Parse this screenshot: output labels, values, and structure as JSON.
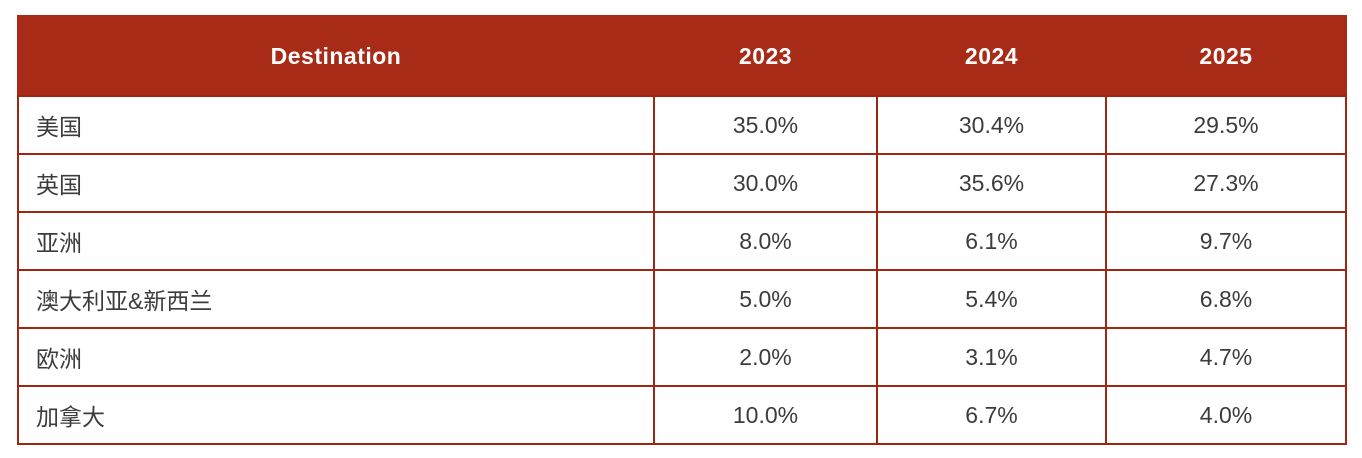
{
  "chart_data": {
    "type": "table",
    "columns": [
      "Destination",
      "2023",
      "2024",
      "2025"
    ],
    "rows": [
      {
        "destination": "美国",
        "values": [
          "35.0%",
          "30.4%",
          "29.5%"
        ]
      },
      {
        "destination": "英国",
        "values": [
          "30.0%",
          "35.6%",
          "27.3%"
        ]
      },
      {
        "destination": "亚洲",
        "values": [
          "8.0%",
          "6.1%",
          "9.7%"
        ]
      },
      {
        "destination": "澳大利亚&新西兰",
        "values": [
          "5.0%",
          "5.4%",
          "6.8%"
        ]
      },
      {
        "destination": "欧洲",
        "values": [
          "2.0%",
          "3.1%",
          "4.7%"
        ]
      },
      {
        "destination": "加拿大",
        "values": [
          "10.0%",
          "6.7%",
          "4.0%"
        ]
      }
    ],
    "values_numeric_percent": {
      "2023": [
        35.0,
        30.0,
        8.0,
        5.0,
        2.0,
        10.0
      ],
      "2024": [
        30.4,
        35.6,
        6.1,
        5.4,
        3.1,
        6.7
      ],
      "2025": [
        29.5,
        27.3,
        9.7,
        6.8,
        4.7,
        4.0
      ]
    }
  },
  "colors": {
    "header_background": "#a72b17",
    "header_text": "#ffffff",
    "grid_border": "#9e2712",
    "body_text": "#3c3c3c",
    "page_background": "#ffffff"
  }
}
